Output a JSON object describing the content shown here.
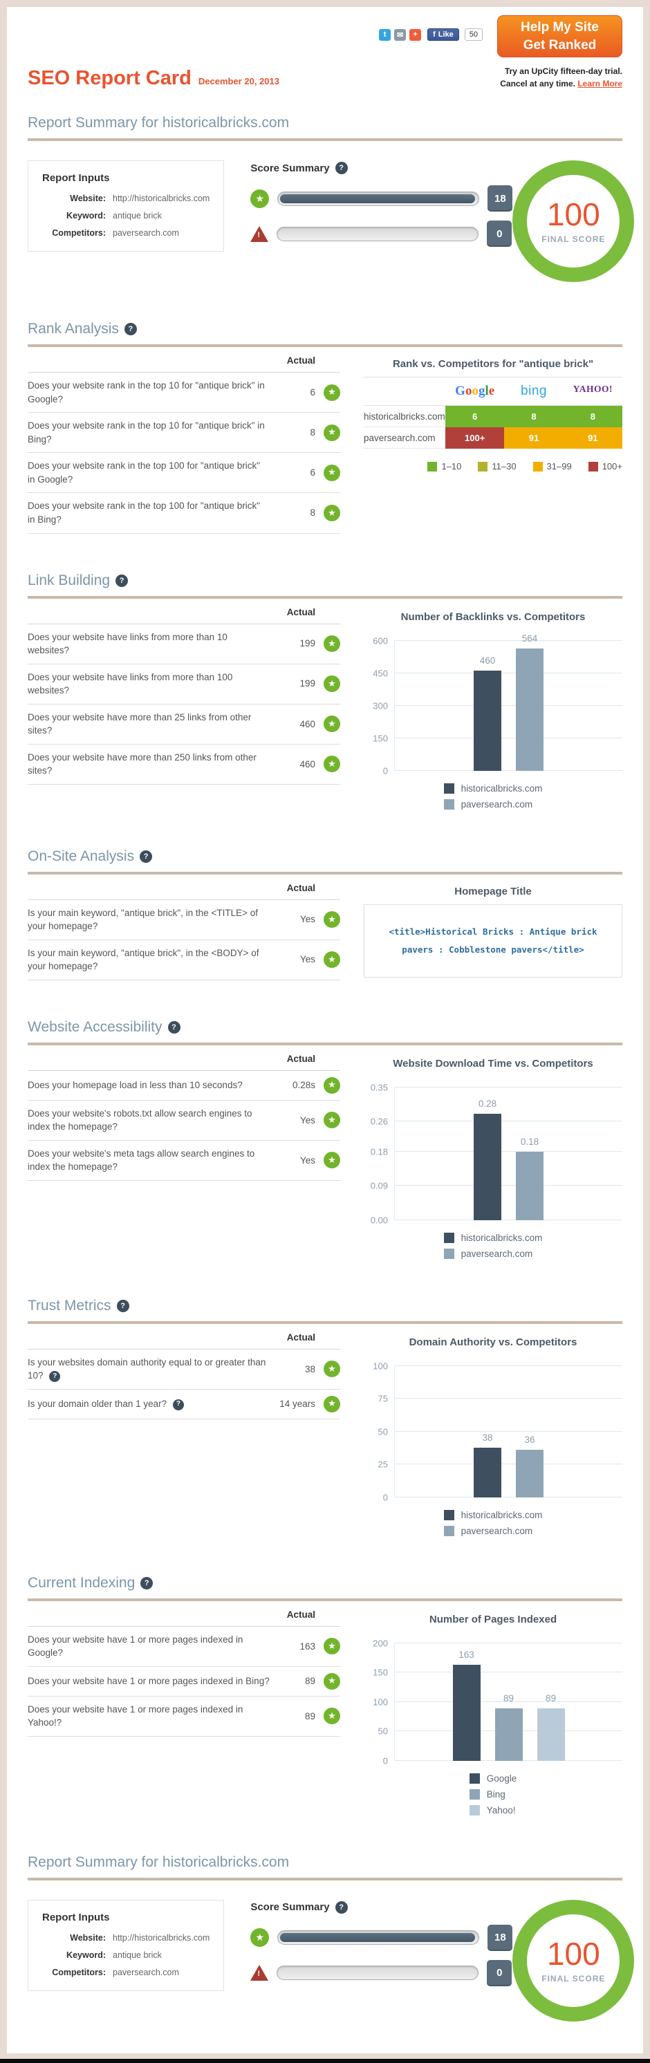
{
  "header": {
    "title": "SEO Report Card",
    "date": "December 20, 2013",
    "social": {
      "twitter": "t",
      "email": "✉",
      "share": "+",
      "facebook": "f",
      "like_label": "Like",
      "like_count": "50"
    },
    "cta": {
      "line1": "Help My Site",
      "line2": "Get Ranked"
    },
    "trial": {
      "line1": "Try an UpCity fifteen-day trial.",
      "line2": "Cancel at any time.",
      "link": "Learn More"
    }
  },
  "icons": {
    "star": "★",
    "question": "?",
    "warning": "!"
  },
  "summary": {
    "heading": "Report Summary for historicalbricks.com",
    "inputs": {
      "title": "Report Inputs",
      "rows": [
        {
          "label": "Website:",
          "value": "http://historicalbricks.com"
        },
        {
          "label": "Keyword:",
          "value": "antique brick"
        },
        {
          "label": "Competitors:",
          "value": "paversearch.com"
        }
      ]
    },
    "score": {
      "title": "Score Summary",
      "pass_count": "18",
      "fail_count": "0",
      "pass_width": "97",
      "fail_width": "0"
    },
    "final": {
      "value": "100",
      "label": "FINAL SCORE"
    }
  },
  "sections": [
    {
      "title": "Rank Analysis",
      "actual_label": "Actual",
      "questions": [
        {
          "text": "Does your website rank in the top 10 for \"antique brick\" in Google?",
          "actual": "6"
        },
        {
          "text": "Does your website rank in the top 10 for \"antique brick\" in Bing?",
          "actual": "8"
        },
        {
          "text": "Does your website rank in the top 100 for \"antique brick\" in Google?",
          "actual": "6"
        },
        {
          "text": "Does your website rank in the top 100 for \"antique brick\" in Bing?",
          "actual": "8"
        }
      ]
    },
    {
      "title": "Link Building",
      "actual_label": "Actual",
      "questions": [
        {
          "text": "Does your website have links from more than 10 websites?",
          "actual": "199"
        },
        {
          "text": "Does your website have links from more than 100 websites?",
          "actual": "199"
        },
        {
          "text": "Does your website have more than 25 links from other sites?",
          "actual": "460"
        },
        {
          "text": "Does your website have more than 250 links from other sites?",
          "actual": "460"
        }
      ]
    },
    {
      "title": "On-Site Analysis",
      "actual_label": "Actual",
      "questions": [
        {
          "text": "Is your main keyword, \"antique brick\", in the <TITLE> of your homepage?",
          "actual": "Yes"
        },
        {
          "text": "Is your main keyword, \"antique brick\", in the <BODY> of your homepage?",
          "actual": "Yes"
        }
      ]
    },
    {
      "title": "Website Accessibility",
      "actual_label": "Actual",
      "questions": [
        {
          "text": "Does your homepage load in less than 10 seconds?",
          "actual": "0.28s"
        },
        {
          "text": "Does your website's robots.txt allow search engines to index the homepage?",
          "actual": "Yes"
        },
        {
          "text": "Does your website's meta tags allow search engines to index the homepage?",
          "actual": "Yes"
        }
      ]
    },
    {
      "title": "Trust Metrics",
      "actual_label": "Actual",
      "questions": [
        {
          "text": "Is your websites domain authority equal to or greater than 10?",
          "actual": "38",
          "help": true
        },
        {
          "text": "Is your domain older than 1 year?",
          "actual": "14 years",
          "help": true
        }
      ]
    },
    {
      "title": "Current Indexing",
      "actual_label": "Actual",
      "questions": [
        {
          "text": "Does your website have 1 or more pages indexed in Google?",
          "actual": "163"
        },
        {
          "text": "Does your website have 1 or more pages indexed in Bing?",
          "actual": "89"
        },
        {
          "text": "Does your website have 1 or more pages indexed in Yahoo!?",
          "actual": "89"
        }
      ]
    }
  ],
  "rank_table": {
    "title": "Rank vs. Competitors for \"antique brick\"",
    "google_letters": [
      {
        "ch": "G",
        "c": "#4081ec"
      },
      {
        "ch": "o",
        "c": "#e34133"
      },
      {
        "ch": "o",
        "c": "#f3b605"
      },
      {
        "ch": "g",
        "c": "#4081ec"
      },
      {
        "ch": "l",
        "c": "#2c9f45"
      },
      {
        "ch": "e",
        "c": "#e34133"
      }
    ],
    "bing_label": "bing",
    "yahoo_label": "YAHOO!",
    "rows": [
      {
        "name": "historicalbricks.com",
        "cells": [
          {
            "value": "6",
            "color": "#72b42c"
          },
          {
            "value": "8",
            "color": "#72b42c"
          },
          {
            "value": "8",
            "color": "#72b42c"
          }
        ]
      },
      {
        "name": "paversearch.com",
        "cells": [
          {
            "value": "100+",
            "color": "#b1403a"
          },
          {
            "value": "91",
            "color": "#f2ad00"
          },
          {
            "value": "91",
            "color": "#f2ad00"
          }
        ]
      }
    ],
    "legend": [
      {
        "label": "1–10",
        "color": "#72b42c"
      },
      {
        "label": "11–30",
        "color": "#b2b32a"
      },
      {
        "label": "31–99",
        "color": "#f2ad00"
      },
      {
        "label": "100+",
        "color": "#b1403a"
      }
    ]
  },
  "homepage_title": {
    "panel_title": "Homepage Title",
    "code": "<title>Historical Bricks : Antique brick pavers : Cobblestone pavers</title>"
  },
  "chart_data": [
    {
      "type": "bar",
      "title": "Number of Backlinks vs. Competitors",
      "categories": [
        "historicalbricks.com",
        "paversearch.com"
      ],
      "values": [
        460,
        564
      ],
      "bar_labels": [
        "460",
        "564"
      ],
      "yticks": [
        {
          "label": "0",
          "v": 0
        },
        {
          "label": "150",
          "v": 150
        },
        {
          "label": "300",
          "v": 300
        },
        {
          "label": "450",
          "v": 450
        },
        {
          "label": "600",
          "v": 600
        }
      ],
      "ylim": [
        0,
        600
      ],
      "colors": [
        "#3e5060",
        "#8fa5b5"
      ],
      "grid": true,
      "legend_position": "bottom",
      "xlabel": "",
      "ylabel": ""
    },
    {
      "type": "bar",
      "title": "Website Download Time vs. Competitors",
      "categories": [
        "historicalbricks.com",
        "paversearch.com"
      ],
      "values": [
        0.28,
        0.18
      ],
      "bar_labels": [
        "0.28",
        "0.18"
      ],
      "yticks": [
        {
          "label": "0.00",
          "v": 0
        },
        {
          "label": "0.09",
          "v": 0.09
        },
        {
          "label": "0.18",
          "v": 0.18
        },
        {
          "label": "0.26",
          "v": 0.26
        },
        {
          "label": "0.35",
          "v": 0.35
        }
      ],
      "ylim": [
        0,
        0.35
      ],
      "colors": [
        "#3e5060",
        "#8fa5b5"
      ],
      "grid": true,
      "legend_position": "bottom",
      "xlabel": "",
      "ylabel": ""
    },
    {
      "type": "bar",
      "title": "Domain Authority vs. Competitors",
      "categories": [
        "historicalbricks.com",
        "paversearch.com"
      ],
      "values": [
        38,
        36
      ],
      "bar_labels": [
        "38",
        "36"
      ],
      "yticks": [
        {
          "label": "0",
          "v": 0
        },
        {
          "label": "25",
          "v": 25
        },
        {
          "label": "50",
          "v": 50
        },
        {
          "label": "75",
          "v": 75
        },
        {
          "label": "100",
          "v": 100
        }
      ],
      "ylim": [
        0,
        100
      ],
      "colors": [
        "#3e5060",
        "#8fa5b5"
      ],
      "grid": true,
      "legend_position": "bottom",
      "xlabel": "",
      "ylabel": ""
    },
    {
      "type": "bar",
      "title": "Number of Pages Indexed",
      "categories": [
        "Google",
        "Bing",
        "Yahoo!"
      ],
      "values": [
        163,
        89,
        89
      ],
      "bar_labels": [
        "163",
        "89",
        "89"
      ],
      "yticks": [
        {
          "label": "0",
          "v": 0
        },
        {
          "label": "50",
          "v": 50
        },
        {
          "label": "100",
          "v": 100
        },
        {
          "label": "150",
          "v": 150
        },
        {
          "label": "200",
          "v": 200
        }
      ],
      "ylim": [
        0,
        200
      ],
      "colors": [
        "#3e5060",
        "#8fa5b5",
        "#b9cbd9"
      ],
      "grid": true,
      "legend_position": "bottom",
      "xlabel": "",
      "ylabel": ""
    }
  ]
}
